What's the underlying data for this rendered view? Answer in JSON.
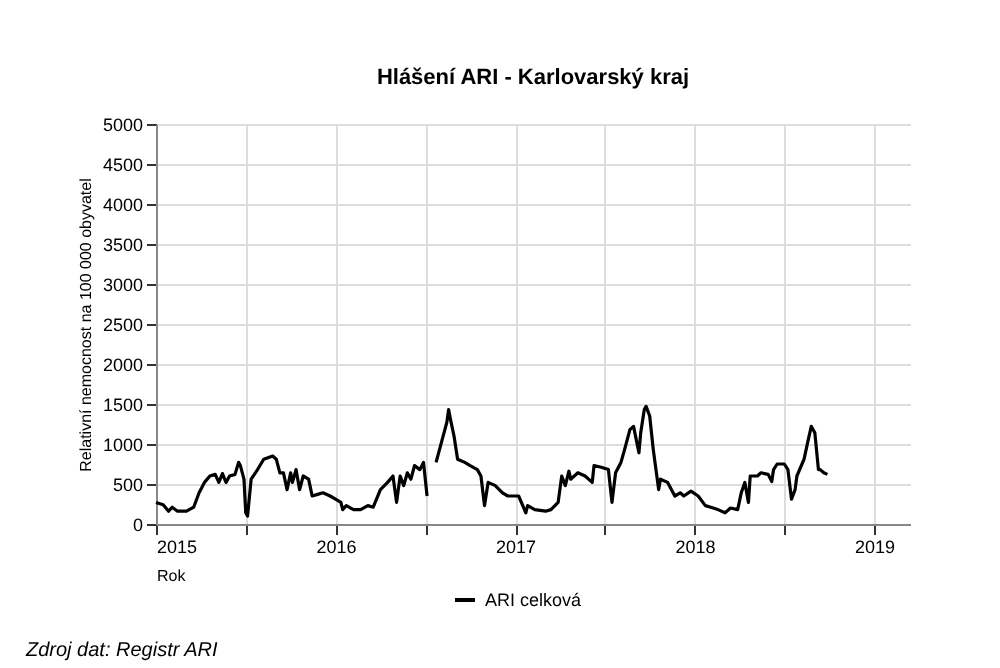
{
  "chart_data": {
    "type": "line",
    "title": "Hlášení ARI  -   Karlovarský kraj",
    "xlabel": "Rok",
    "ylabel": "Relativní nemocnost na 100 000 obyvatel",
    "annotations": [
      "Zdroj dat: Registr ARI"
    ],
    "xlim": [
      2015,
      2019.2
    ],
    "xticks": [
      2015,
      {
        "value": 2015.5,
        "label": null
      },
      2016,
      {
        "value": 2016.5,
        "label": null
      },
      2017,
      {
        "value": 2017.5,
        "label": null
      },
      2018,
      {
        "value": 2018.5,
        "label": null
      },
      2019
    ],
    "ylim": [
      0,
      5000
    ],
    "yticks": [
      0,
      500,
      1000,
      1500,
      2000,
      2500,
      3000,
      3500,
      4000,
      4500,
      5000
    ],
    "grid": true,
    "legend": "bottom",
    "marker": "none",
    "line_style": "solid",
    "series": [
      {
        "name": "ARI celková",
        "color": "#000000",
        "x": [
          2015.0,
          2015.04,
          2015.07,
          2015.09,
          2015.12,
          2015.17,
          2015.21,
          2015.24,
          2015.27,
          2015.3,
          2015.33,
          2015.35,
          2015.37,
          2015.39,
          2015.41,
          2015.44,
          2015.46,
          2015.47,
          2015.49,
          2015.5,
          2015.51,
          2015.53,
          2015.56,
          2015.6,
          2015.65,
          2015.67,
          2015.69,
          2015.71,
          2015.73,
          2015.75,
          2015.76,
          2015.78,
          2015.8,
          2015.82,
          2015.85,
          2015.87,
          2015.9,
          2015.93,
          2015.97,
          2016.0,
          2016.03,
          2016.04,
          2016.06,
          2016.1,
          2016.14,
          2016.18,
          2016.21,
          2016.25,
          2016.29,
          2016.32,
          2016.34,
          2016.36,
          2016.38,
          2016.4,
          2016.42,
          2016.44,
          2016.47,
          2016.49,
          2016.51,
          2016.53,
          2016.56,
          2016.59,
          2016.62,
          2016.63,
          2016.64,
          2016.66,
          2016.68,
          2016.72,
          2016.75,
          2016.79,
          2016.81,
          2016.83,
          2016.85,
          2016.89,
          2016.93,
          2016.96,
          2017.02,
          2017.06,
          2017.07,
          2017.11,
          2017.17,
          2017.2,
          2017.24,
          2017.26,
          2017.28,
          2017.3,
          2017.31,
          2017.35,
          2017.39,
          2017.43,
          2017.44,
          2017.48,
          2017.52,
          2017.54,
          2017.56,
          2017.59,
          2017.61,
          2017.64,
          2017.66,
          2017.69,
          2017.7,
          2017.72,
          2017.73,
          2017.75,
          2017.77,
          2017.8,
          2017.81,
          2017.85,
          2017.89,
          2017.92,
          2017.94,
          2017.98,
          2018.02,
          2018.06,
          2018.09,
          2018.13,
          2018.17,
          2018.2,
          2018.24,
          2018.26,
          2018.28,
          2018.3,
          2018.31,
          2018.35,
          2018.37,
          2018.41,
          2018.43,
          2018.44,
          2018.46,
          2018.5,
          2018.52,
          2018.54,
          2018.56,
          2018.57,
          2018.61,
          2018.63,
          2018.65,
          2018.67,
          2018.69,
          2018.7,
          2018.72,
          2018.74
        ],
        "values": [
          270,
          240,
          160,
          210,
          160,
          160,
          210,
          390,
          520,
          600,
          620,
          520,
          630,
          520,
          600,
          620,
          770,
          730,
          560,
          140,
          100,
          560,
          660,
          810,
          850,
          810,
          640,
          640,
          430,
          640,
          520,
          680,
          430,
          600,
          560,
          350,
          370,
          390,
          350,
          310,
          270,
          180,
          230,
          180,
          180,
          230,
          210,
          430,
          520,
          600,
          270,
          600,
          480,
          640,
          560,
          730,
          680,
          770,
          350,
          null,
          770,
          1020,
          1270,
          1430,
          1310,
          1100,
          810,
          770,
          730,
          680,
          600,
          230,
          520,
          480,
          390,
          350,
          350,
          140,
          230,
          180,
          160,
          180,
          270,
          600,
          480,
          660,
          560,
          640,
          600,
          520,
          730,
          710,
          680,
          270,
          640,
          770,
          930,
          1180,
          1220,
          890,
          1140,
          1430,
          1470,
          1350,
          930,
          430,
          560,
          520,
          350,
          390,
          350,
          410,
          350,
          230,
          210,
          180,
          140,
          200,
          180,
          390,
          520,
          270,
          600,
          600,
          640,
          620,
          530,
          680,
          750,
          750,
          680,
          310,
          430,
          600,
          810,
          1020,
          1220,
          1140,
          680,
          680,
          640,
          620
        ]
      }
    ]
  }
}
